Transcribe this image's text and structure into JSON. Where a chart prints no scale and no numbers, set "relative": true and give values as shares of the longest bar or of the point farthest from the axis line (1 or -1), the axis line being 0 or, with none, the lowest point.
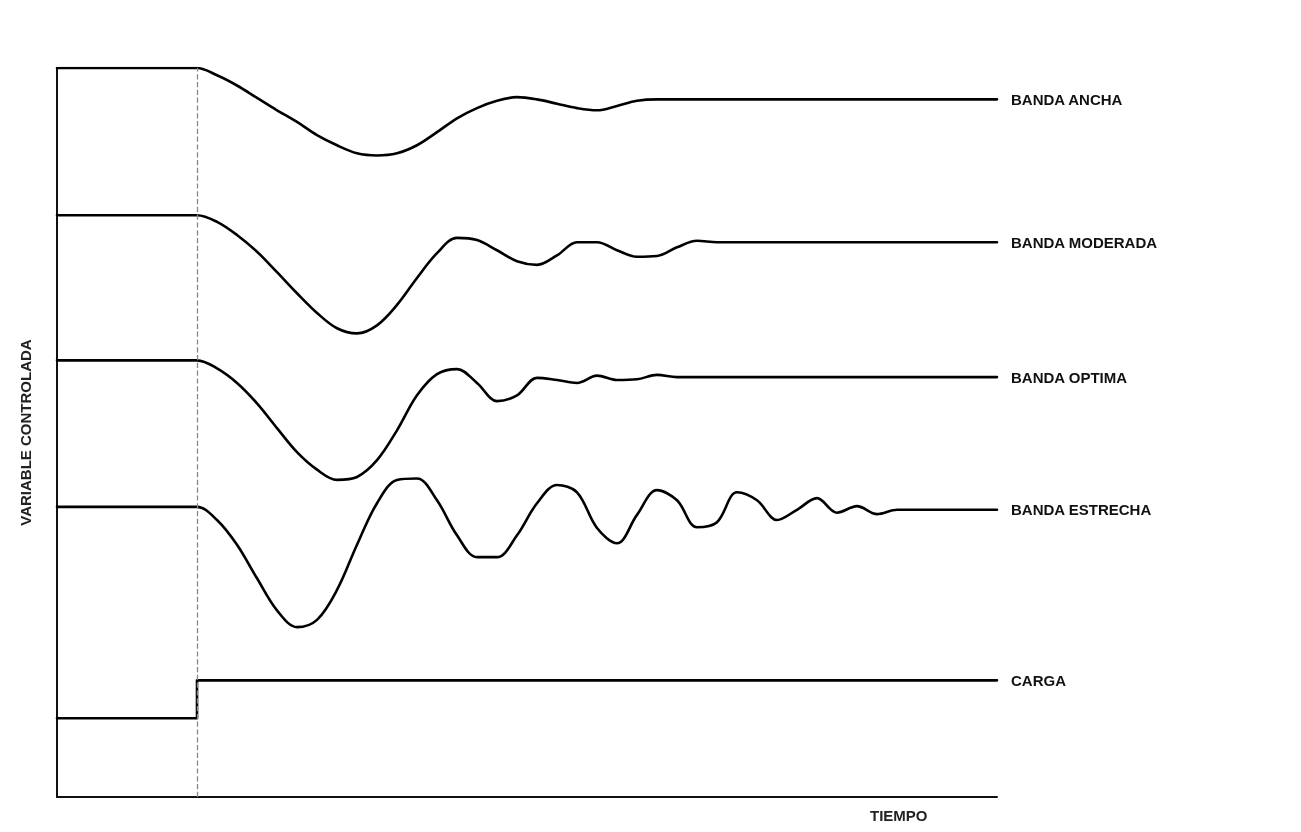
{
  "chart_data": {
    "type": "line",
    "relative": true,
    "xlabel": "TIEMPO",
    "ylabel": "VARIABLE CONTROLADA",
    "legend": false,
    "grid": false,
    "marker": "none",
    "categories": [
      null,
      null,
      null,
      null,
      null,
      null,
      null,
      null,
      null,
      null,
      null,
      null,
      null,
      null,
      null,
      null,
      null,
      null,
      null,
      null,
      null,
      null,
      null,
      null,
      null,
      null,
      null,
      null,
      null,
      null,
      null,
      null,
      null,
      null,
      null,
      null,
      null,
      null,
      null,
      null,
      null,
      null,
      null,
      null,
      null,
      null,
      null,
      null
    ],
    "series": [
      {
        "name": "BANDA ANCHA",
        "color": "#000000",
        "values": [
          1.0,
          1.0,
          1.0,
          1.0,
          1.0,
          1.0,
          1.0,
          1.0,
          0.99,
          0.976,
          0.959,
          0.942,
          0.926,
          0.908,
          0.894,
          0.883,
          0.88,
          0.883,
          0.894,
          0.912,
          0.931,
          0.945,
          0.955,
          0.96,
          0.957,
          0.951,
          0.945,
          0.942,
          0.948,
          0.955,
          0.957,
          0.957,
          0.957,
          0.957,
          0.957,
          0.957,
          0.957,
          0.957,
          0.957,
          0.957,
          0.957,
          0.957,
          0.957,
          0.957,
          0.957,
          0.957,
          0.957,
          0.957
        ]
      },
      {
        "name": "BANDA MODERADA",
        "color": "#000000",
        "values": [
          0.798,
          0.798,
          0.798,
          0.798,
          0.798,
          0.798,
          0.798,
          0.798,
          0.789,
          0.771,
          0.748,
          0.72,
          0.691,
          0.664,
          0.643,
          0.636,
          0.647,
          0.675,
          0.712,
          0.746,
          0.767,
          0.764,
          0.75,
          0.735,
          0.73,
          0.743,
          0.761,
          0.761,
          0.75,
          0.741,
          0.742,
          0.754,
          0.763,
          0.761,
          0.761,
          0.761,
          0.761,
          0.761,
          0.761,
          0.761,
          0.761,
          0.761,
          0.761,
          0.761,
          0.761,
          0.761,
          0.761,
          0.761
        ]
      },
      {
        "name": "BANDA OPTIMA",
        "color": "#000000",
        "values": [
          0.599,
          0.599,
          0.599,
          0.599,
          0.599,
          0.599,
          0.599,
          0.599,
          0.588,
          0.568,
          0.54,
          0.506,
          0.473,
          0.449,
          0.435,
          0.439,
          0.462,
          0.503,
          0.551,
          0.58,
          0.587,
          0.568,
          0.543,
          0.551,
          0.575,
          0.572,
          0.568,
          0.578,
          0.572,
          0.573,
          0.579,
          0.576,
          0.576,
          0.576,
          0.576,
          0.576,
          0.576,
          0.576,
          0.576,
          0.576,
          0.576,
          0.576,
          0.576,
          0.576,
          0.576,
          0.576,
          0.576,
          0.576
        ]
      },
      {
        "name": "BANDA ESTRECHA",
        "color": "#000000",
        "values": [
          0.398,
          0.398,
          0.398,
          0.398,
          0.398,
          0.398,
          0.398,
          0.398,
          0.38,
          0.346,
          0.3,
          0.256,
          0.233,
          0.243,
          0.284,
          0.346,
          0.403,
          0.435,
          0.437,
          0.407,
          0.359,
          0.329,
          0.329,
          0.359,
          0.403,
          0.428,
          0.418,
          0.369,
          0.348,
          0.387,
          0.421,
          0.407,
          0.37,
          0.377,
          0.418,
          0.407,
          0.38,
          0.394,
          0.41,
          0.39,
          0.399,
          0.388,
          0.394,
          0.394,
          0.394,
          0.394,
          0.394,
          0.394
        ]
      },
      {
        "name": "CARGA",
        "type": "step",
        "color": "#000000",
        "values": [
          0.108,
          0.108,
          0.108,
          0.108,
          0.108,
          0.108,
          0.108,
          0.16,
          0.16,
          0.16,
          0.16,
          0.16,
          0.16,
          0.16,
          0.16,
          0.16,
          0.16,
          0.16,
          0.16,
          0.16,
          0.16,
          0.16,
          0.16,
          0.16,
          0.16,
          0.16,
          0.16,
          0.16,
          0.16,
          0.16,
          0.16,
          0.16,
          0.16,
          0.16,
          0.16,
          0.16,
          0.16,
          0.16,
          0.16,
          0.16,
          0.16,
          0.16,
          0.16,
          0.16,
          0.16,
          0.16,
          0.16,
          0.16
        ]
      }
    ]
  }
}
